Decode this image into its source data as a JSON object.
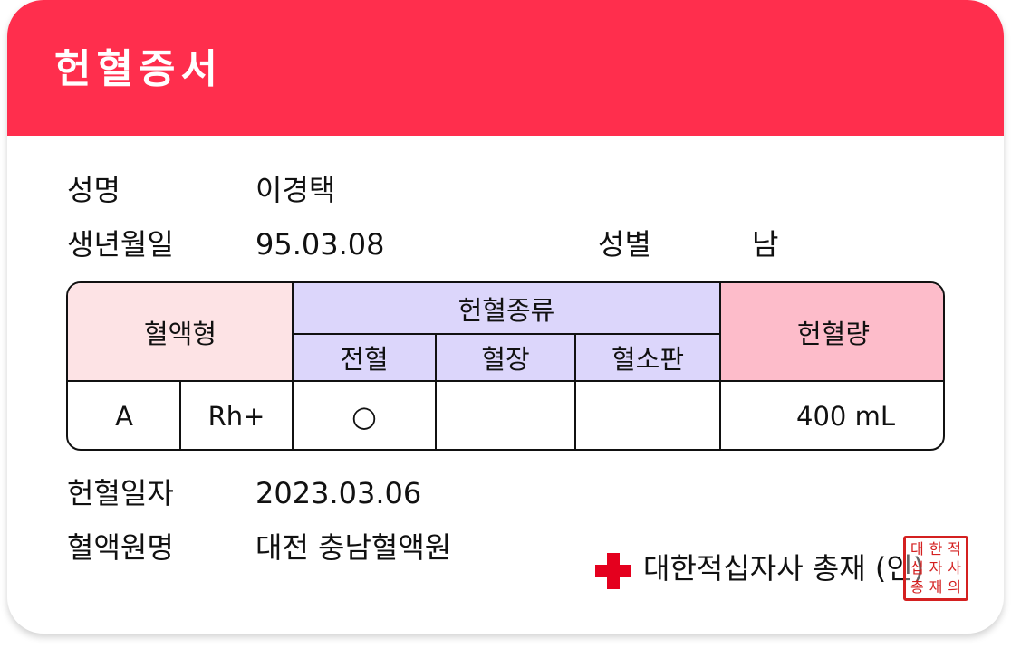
{
  "header": {
    "title": "헌혈증서"
  },
  "info": {
    "name_label": "성명",
    "name_value": "이경택",
    "birth_label": "생년월일",
    "birth_value": "95.03.08",
    "sex_label": "성별",
    "sex_value": "남"
  },
  "table": {
    "blood_type_header": "혈액형",
    "donation_type_header": "헌혈종류",
    "whole_blood_header": "전혈",
    "plasma_header": "혈장",
    "platelet_header": "혈소판",
    "amount_header": "헌혈량",
    "abo": "A",
    "rh": "Rh+",
    "whole_blood_mark": "○",
    "plasma_mark": "",
    "platelet_mark": "",
    "amount": "400 mL"
  },
  "donation": {
    "date_label": "헌혈일자",
    "date_value": "2023.03.06",
    "center_label": "혈액원명",
    "center_value": "대전 충남혈액원"
  },
  "issuer": {
    "text": "대한적십자사 총재 (인)"
  },
  "seal": {
    "text": "대한적십자사총재의인"
  },
  "colors": {
    "header": "#ff2e4d",
    "cross": "#e4001e",
    "seal": "#d42020"
  }
}
